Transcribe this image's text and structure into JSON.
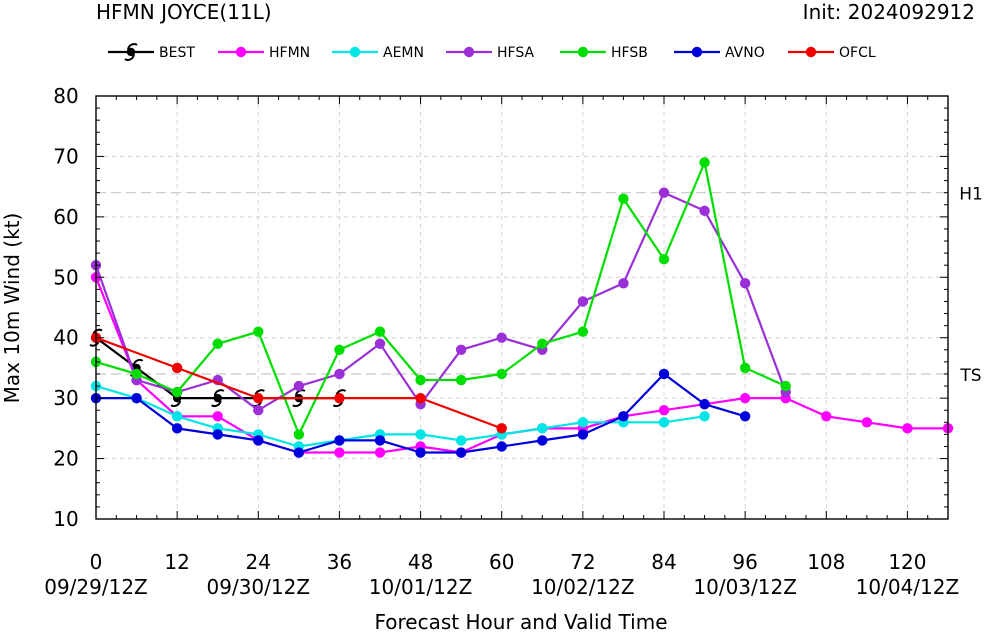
{
  "chart_data": {
    "type": "line",
    "title": "HFMN JOYCE(11L)",
    "subtitle": "Init: 2024092912",
    "xlabel": "Forecast Hour and Valid Time",
    "ylabel": "Max 10m Wind (kt)",
    "xlim": [
      0,
      126
    ],
    "ylim": [
      10,
      80
    ],
    "grid": true,
    "legend_placement": "top",
    "x_ticks": [
      0,
      12,
      24,
      36,
      48,
      60,
      72,
      84,
      96,
      108,
      120
    ],
    "x_tick_labels": [
      "0",
      "12",
      "24",
      "36",
      "48",
      "60",
      "72",
      "84",
      "96",
      "108",
      "120"
    ],
    "date_labels": [
      {
        "x": 0,
        "label": "09/29/12Z"
      },
      {
        "x": 24,
        "label": "09/30/12Z"
      },
      {
        "x": 48,
        "label": "10/01/12Z"
      },
      {
        "x": 72,
        "label": "10/02/12Z"
      },
      {
        "x": 96,
        "label": "10/03/12Z"
      },
      {
        "x": 120,
        "label": "10/04/12Z"
      }
    ],
    "y_ticks": [
      10,
      20,
      30,
      40,
      50,
      60,
      70,
      80
    ],
    "y_tick_labels": [
      "10",
      "20",
      "30",
      "40",
      "50",
      "60",
      "70",
      "80"
    ],
    "reference_lines": [
      {
        "y": 64,
        "label": "H1"
      },
      {
        "y": 34,
        "label": "TS"
      }
    ],
    "series": [
      {
        "name": "BEST",
        "color": "#000000",
        "marker": "hurricane-symbol",
        "x": [
          0,
          6,
          12,
          18,
          24,
          30,
          36
        ],
        "y": [
          40,
          35,
          30,
          30,
          30,
          30,
          30
        ]
      },
      {
        "name": "HFMN",
        "color": "#ff00ff",
        "marker": "circle",
        "x": [
          0,
          6,
          12,
          18,
          24,
          30,
          36,
          42,
          48,
          54,
          60,
          66,
          72,
          78,
          84,
          90,
          96,
          102,
          108,
          114,
          120,
          126
        ],
        "y": [
          50,
          33,
          27,
          27,
          23,
          21,
          21,
          21,
          22,
          21,
          24,
          25,
          25,
          27,
          28,
          29,
          30,
          30,
          27,
          26,
          25,
          25
        ]
      },
      {
        "name": "AEMN",
        "color": "#00e5e5",
        "marker": "circle",
        "x": [
          0,
          6,
          12,
          18,
          24,
          30,
          36,
          42,
          48,
          54,
          60,
          66,
          72,
          78,
          84,
          90
        ],
        "y": [
          32,
          30,
          27,
          25,
          24,
          22,
          23,
          24,
          24,
          23,
          24,
          25,
          26,
          26,
          26,
          27
        ]
      },
      {
        "name": "HFSA",
        "color": "#9b30d9",
        "marker": "circle",
        "x": [
          0,
          6,
          12,
          18,
          24,
          30,
          36,
          42,
          48,
          54,
          60,
          66,
          72,
          78,
          84,
          90,
          96,
          102
        ],
        "y": [
          52,
          33,
          31,
          33,
          28,
          32,
          34,
          39,
          29,
          38,
          40,
          38,
          46,
          49,
          64,
          61,
          49,
          31
        ]
      },
      {
        "name": "HFSB",
        "color": "#00dd00",
        "marker": "circle",
        "x": [
          0,
          6,
          12,
          18,
          24,
          30,
          36,
          42,
          48,
          54,
          60,
          66,
          72,
          78,
          84,
          90,
          96,
          102
        ],
        "y": [
          36,
          34,
          31,
          39,
          41,
          24,
          38,
          41,
          33,
          33,
          34,
          39,
          41,
          63,
          53,
          69,
          35,
          32
        ]
      },
      {
        "name": "AVNO",
        "color": "#0000dd",
        "marker": "circle",
        "x": [
          0,
          6,
          12,
          18,
          24,
          30,
          36,
          42,
          48,
          54,
          60,
          66,
          72,
          78,
          84,
          90,
          96
        ],
        "y": [
          30,
          30,
          25,
          24,
          23,
          21,
          23,
          23,
          21,
          21,
          22,
          23,
          24,
          27,
          34,
          29,
          27
        ]
      },
      {
        "name": "OFCL",
        "color": "#ee0000",
        "marker": "circle",
        "x": [
          0,
          12,
          24,
          36,
          48,
          60
        ],
        "y": [
          40,
          35,
          30,
          30,
          30,
          25
        ]
      }
    ]
  }
}
